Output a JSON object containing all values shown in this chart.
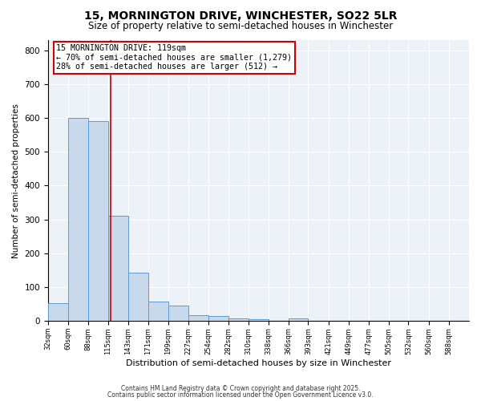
{
  "title": "15, MORNINGTON DRIVE, WINCHESTER, SO22 5LR",
  "subtitle": "Size of property relative to semi-detached houses in Winchester",
  "xlabel": "Distribution of semi-detached houses by size in Winchester",
  "ylabel": "Number of semi-detached properties",
  "bar_values": [
    52,
    600,
    590,
    312,
    142,
    57,
    45,
    17,
    15,
    8,
    5,
    0,
    8,
    0,
    0,
    0,
    0,
    0,
    0,
    0
  ],
  "bin_edges": [
    32,
    60,
    88,
    115,
    143,
    171,
    199,
    227,
    254,
    282,
    310,
    338,
    366,
    393,
    421,
    449,
    477,
    505,
    532,
    560,
    588
  ],
  "bin_labels": [
    "32sqm",
    "60sqm",
    "88sqm",
    "115sqm",
    "143sqm",
    "171sqm",
    "199sqm",
    "227sqm",
    "254sqm",
    "282sqm",
    "310sqm",
    "338sqm",
    "366sqm",
    "393sqm",
    "421sqm",
    "449sqm",
    "477sqm",
    "505sqm",
    "532sqm",
    "560sqm",
    "588sqm"
  ],
  "property_size": 119,
  "bar_color": "#c9d9ec",
  "bar_edge_color": "#5b9bd5",
  "vline_color": "#cc0000",
  "annotation_line1": "15 MORNINGTON DRIVE: 119sqm",
  "annotation_line2": "← 70% of semi-detached houses are smaller (1,279)",
  "annotation_line3": "28% of semi-detached houses are larger (512) →",
  "annotation_box_color": "#ffffff",
  "annotation_box_edge_color": "#cc0000",
  "ylim": [
    0,
    830
  ],
  "yticks": [
    0,
    100,
    200,
    300,
    400,
    500,
    600,
    700,
    800
  ],
  "background_color": "#edf1f8",
  "footer_line1": "Contains HM Land Registry data © Crown copyright and database right 2025.",
  "footer_line2": "Contains public sector information licensed under the Open Government Licence v3.0.",
  "title_fontsize": 10,
  "subtitle_fontsize": 8.5
}
